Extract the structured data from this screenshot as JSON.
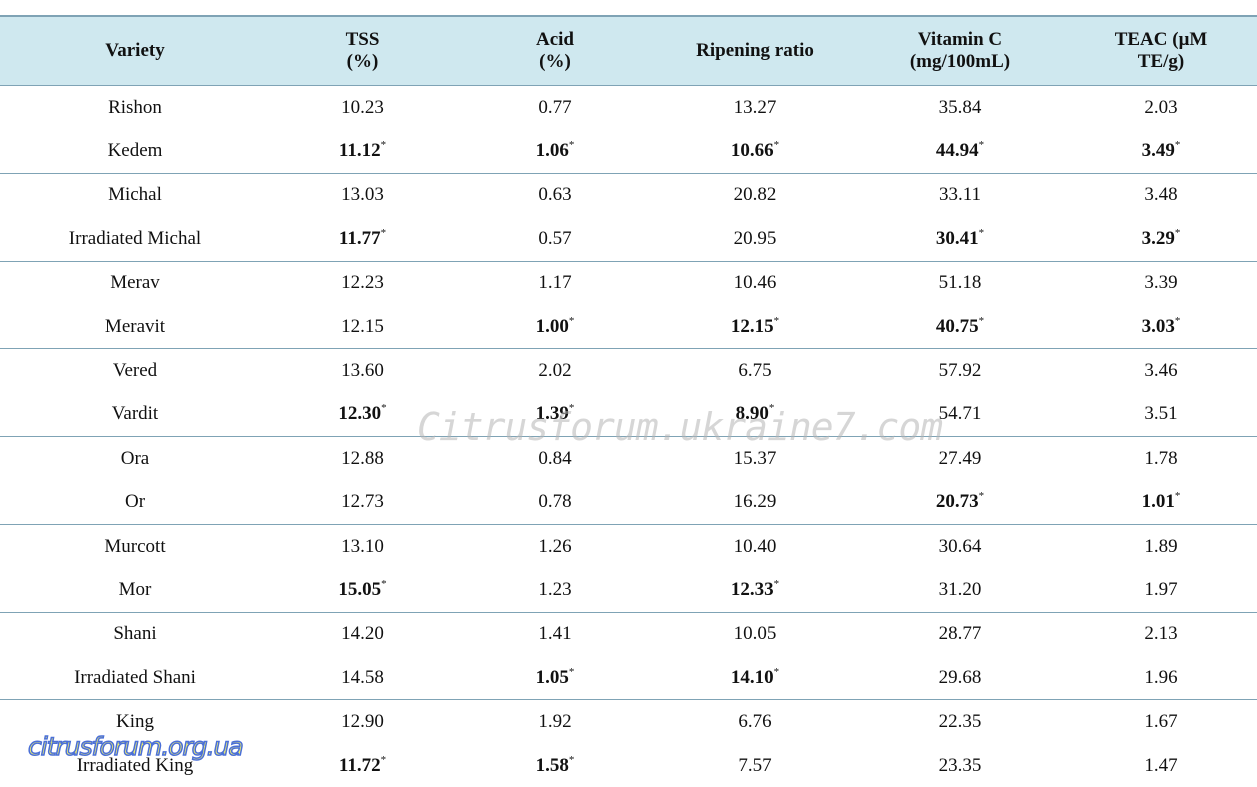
{
  "table": {
    "header": [
      [
        "Variety"
      ],
      [
        "TSS",
        "(%)"
      ],
      [
        "Acid",
        "(%)"
      ],
      [
        "Ripening ratio"
      ],
      [
        "Vitamin C",
        "(mg/100mL)"
      ],
      [
        "TEAC (μM",
        "TE/g)"
      ]
    ],
    "rows": [
      [
        "Rishon",
        "10.23",
        "0.77",
        "13.27",
        "35.84",
        "2.03"
      ],
      [
        "Kedem",
        {
          "text": "11.12",
          "note": "*"
        },
        {
          "text": "1.06",
          "note": "*"
        },
        {
          "text": "10.66",
          "note": "*"
        },
        {
          "text": "44.94",
          "note": "*"
        },
        {
          "text": "3.49",
          "note": "*"
        }
      ],
      [
        "Michal",
        "13.03",
        "0.63",
        "20.82",
        "33.11",
        "3.48"
      ],
      [
        "Irradiated Michal",
        {
          "text": "11.77",
          "note": "*"
        },
        "0.57",
        "20.95",
        {
          "text": "30.41",
          "note": "*"
        },
        {
          "text": "3.29",
          "note": "*"
        }
      ],
      [
        "Merav",
        "12.23",
        "1.17",
        "10.46",
        "51.18",
        "3.39"
      ],
      [
        "Meravit",
        "12.15",
        {
          "text": "1.00",
          "note": "*"
        },
        {
          "text": "12.15",
          "note": "*"
        },
        {
          "text": "40.75",
          "note": "*"
        },
        {
          "text": "3.03",
          "note": "*"
        }
      ],
      [
        "Vered",
        "13.60",
        "2.02",
        "6.75",
        "57.92",
        "3.46"
      ],
      [
        "Vardit",
        {
          "text": "12.30",
          "note": "*"
        },
        {
          "text": "1.39",
          "note": "*"
        },
        {
          "text": "8.90",
          "note": "*"
        },
        "54.71",
        "3.51"
      ],
      [
        "Ora",
        "12.88",
        "0.84",
        "15.37",
        "27.49",
        "1.78"
      ],
      [
        "Or",
        "12.73",
        "0.78",
        "16.29",
        {
          "text": "20.73",
          "note": "*"
        },
        {
          "text": "1.01",
          "note": "*"
        }
      ],
      [
        "Murcott",
        "13.10",
        "1.26",
        "10.40",
        "30.64",
        "1.89"
      ],
      [
        "Mor",
        {
          "text": "15.05",
          "note": "*"
        },
        "1.23",
        {
          "text": "12.33",
          "note": "*"
        },
        "31.20",
        "1.97"
      ],
      [
        "Shani",
        "14.20",
        "1.41",
        "10.05",
        "28.77",
        "2.13"
      ],
      [
        "Irradiated Shani",
        "14.58",
        {
          "text": "1.05",
          "note": "*"
        },
        {
          "text": "14.10",
          "note": "*"
        },
        "29.68",
        "1.96"
      ],
      [
        "King",
        "12.90",
        "1.92",
        "6.76",
        "22.35",
        "1.67"
      ],
      [
        "Irradiated King",
        {
          "text": "11.72",
          "note": "*"
        },
        {
          "text": "1.58",
          "note": "*"
        },
        "7.57",
        "23.35",
        "1.47"
      ]
    ]
  },
  "watermarks": [
    "Citrusforum.ukraine7.com",
    "citrusforum.org.ua"
  ]
}
